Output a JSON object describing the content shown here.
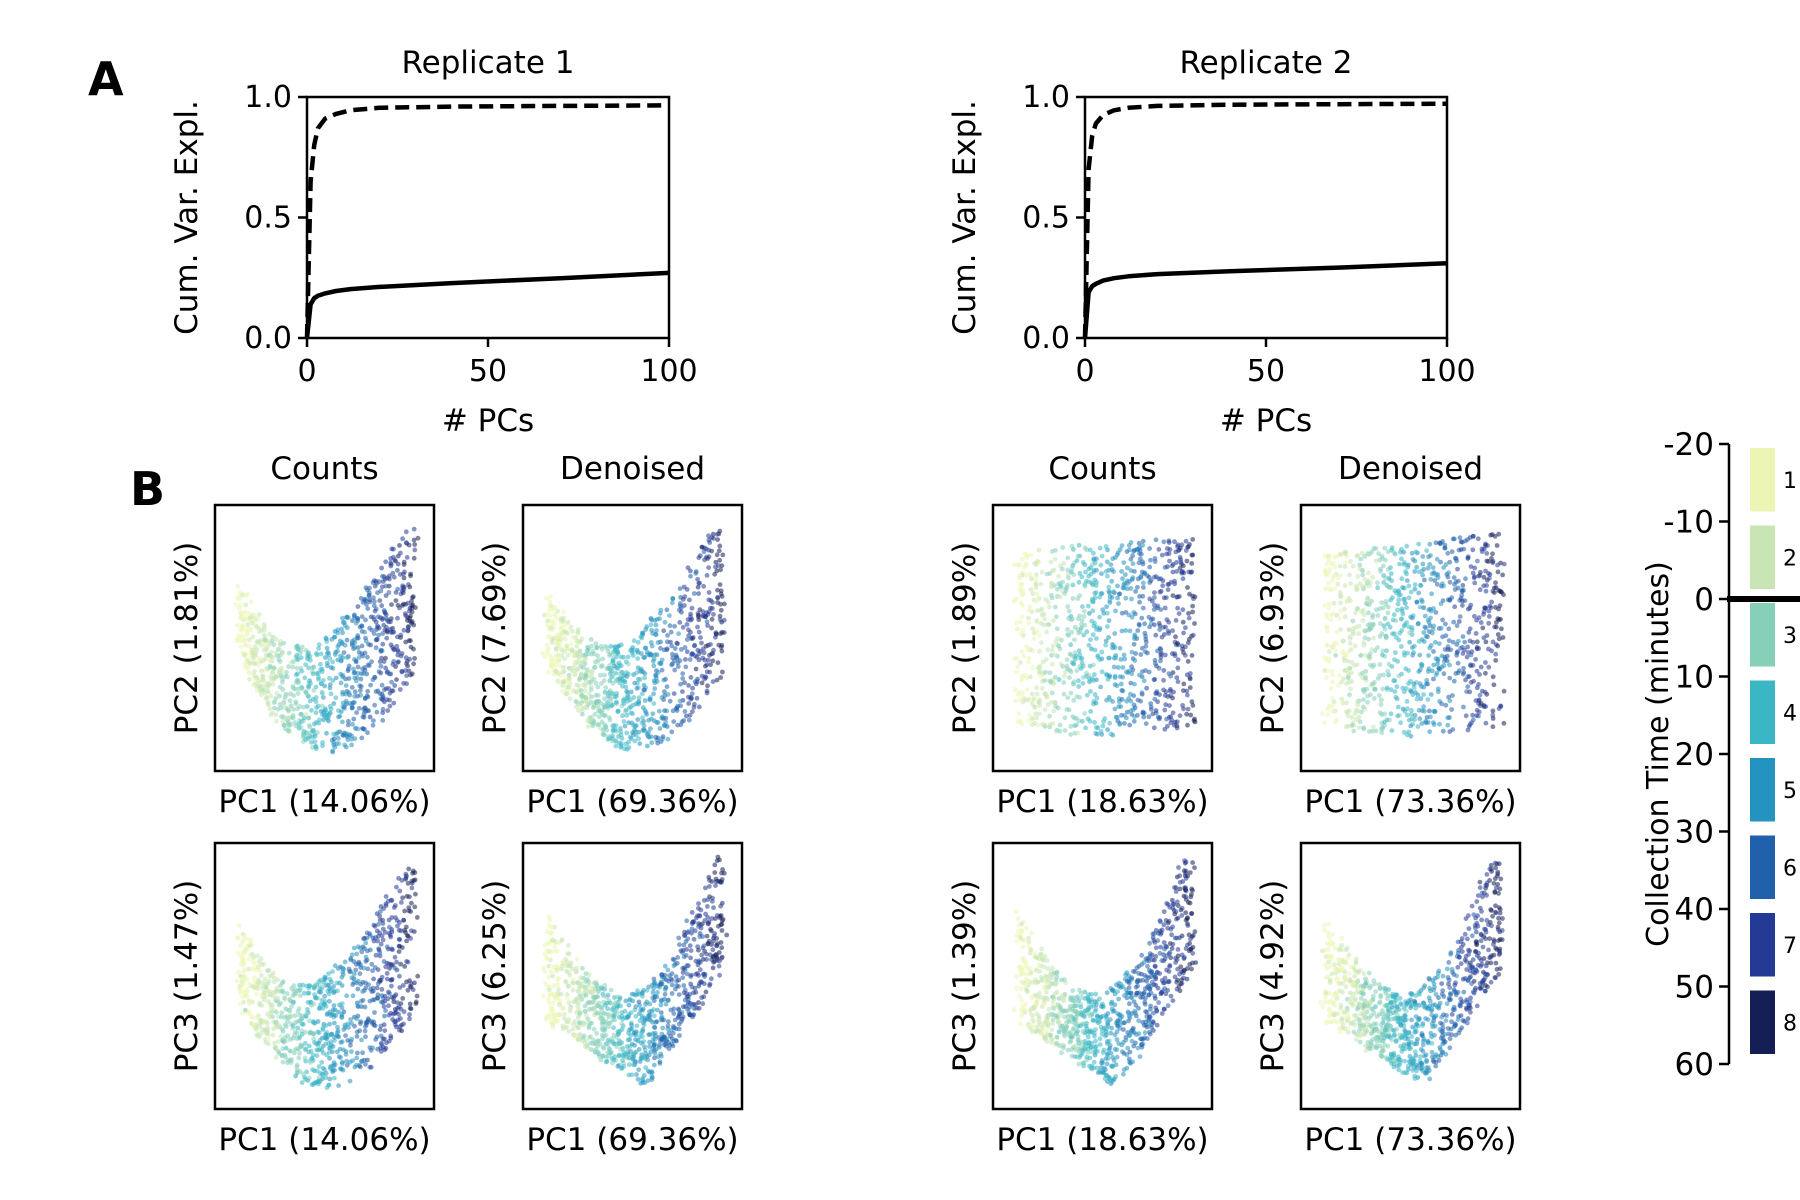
{
  "panels": {
    "a_label": "A",
    "b_label": "B"
  },
  "chart_data": [
    {
      "type": "line",
      "title": "Replicate 1",
      "xlabel": "# PCs",
      "ylabel": "Cum. Var. Expl.",
      "xlim": [
        0,
        100
      ],
      "ylim": [
        0.0,
        1.0
      ],
      "xticks": [
        "0",
        "50",
        "100"
      ],
      "yticks": [
        "0.0",
        "0.5",
        "1.0"
      ],
      "series": [
        {
          "style": "dashed",
          "x": [
            0,
            1,
            2,
            3,
            5,
            8,
            12,
            20,
            40,
            70,
            100
          ],
          "y": [
            0.0,
            0.65,
            0.8,
            0.87,
            0.91,
            0.93,
            0.945,
            0.955,
            0.96,
            0.963,
            0.965
          ]
        },
        {
          "style": "solid",
          "x": [
            0,
            1,
            2,
            3,
            5,
            8,
            12,
            20,
            40,
            70,
            100
          ],
          "y": [
            0.0,
            0.14,
            0.165,
            0.175,
            0.185,
            0.195,
            0.203,
            0.212,
            0.228,
            0.248,
            0.27
          ]
        }
      ]
    },
    {
      "type": "line",
      "title": "Replicate 2",
      "xlabel": "# PCs",
      "ylabel": "Cum. Var. Expl.",
      "xlim": [
        0,
        100
      ],
      "ylim": [
        0.0,
        1.0
      ],
      "xticks": [
        "0",
        "50",
        "100"
      ],
      "yticks": [
        "0.0",
        "0.5",
        "1.0"
      ],
      "series": [
        {
          "style": "dashed",
          "x": [
            0,
            1,
            2,
            3,
            5,
            8,
            12,
            20,
            40,
            70,
            100
          ],
          "y": [
            0.0,
            0.7,
            0.84,
            0.89,
            0.925,
            0.945,
            0.955,
            0.963,
            0.968,
            0.97,
            0.972
          ]
        },
        {
          "style": "solid",
          "x": [
            0,
            1,
            2,
            3,
            5,
            8,
            12,
            20,
            40,
            70,
            100
          ],
          "y": [
            0.0,
            0.19,
            0.215,
            0.225,
            0.238,
            0.248,
            0.256,
            0.265,
            0.277,
            0.292,
            0.31
          ]
        }
      ]
    },
    {
      "type": "scatter",
      "replicates": [
        {
          "col_titles": [
            "Counts",
            "Denoised"
          ],
          "plots": [
            {
              "shape": "bowl",
              "xlabel": "PC1 (14.06%)",
              "ylabel": "PC2 (1.81%)"
            },
            {
              "shape": "bowl",
              "xlabel": "PC1 (69.36%)",
              "ylabel": "PC2 (7.69%)"
            },
            {
              "shape": "bowl",
              "xlabel": "PC1 (14.06%)",
              "ylabel": "PC3 (1.47%)"
            },
            {
              "shape": "v",
              "xlabel": "PC1 (69.36%)",
              "ylabel": "PC3 (6.25%)"
            }
          ]
        },
        {
          "col_titles": [
            "Counts",
            "Denoised"
          ],
          "plots": [
            {
              "shape": "block",
              "xlabel": "PC1 (18.63%)",
              "ylabel": "PC2 (1.89%)"
            },
            {
              "shape": "block",
              "xlabel": "PC1 (73.36%)",
              "ylabel": "PC2 (6.93%)"
            },
            {
              "shape": "v",
              "xlabel": "PC1 (18.63%)",
              "ylabel": "PC3 (1.39%)"
            },
            {
              "shape": "v",
              "xlabel": "PC1 (73.36%)",
              "ylabel": "PC3 (4.92%)"
            }
          ]
        }
      ]
    }
  ],
  "colorbar": {
    "label": "Collection Time (minutes)",
    "ticks": [
      "-20",
      "-10",
      "0",
      "10",
      "20",
      "30",
      "40",
      "50",
      "60"
    ],
    "segments": [
      {
        "label": "1",
        "color": "#edf5b4"
      },
      {
        "label": "2",
        "color": "#c9e5b3"
      },
      {
        "label": "3",
        "color": "#86cfb9"
      },
      {
        "label": "4",
        "color": "#3bb6c4"
      },
      {
        "label": "5",
        "color": "#2593c0"
      },
      {
        "label": "6",
        "color": "#2161ab"
      },
      {
        "label": "7",
        "color": "#243b95"
      },
      {
        "label": "8",
        "color": "#141e55"
      }
    ]
  }
}
